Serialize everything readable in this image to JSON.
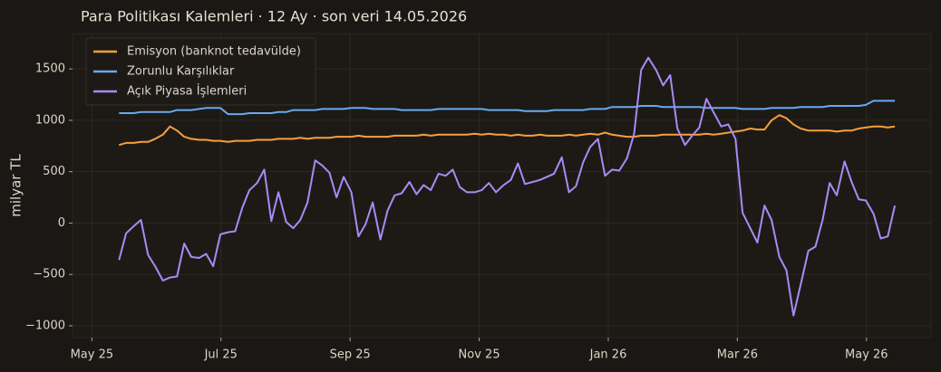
{
  "chart_data": {
    "type": "line",
    "title": "Para Politikası Kalemleri · 12 Ay · son veri 14.05.2026",
    "y_label": "milyar TL",
    "x": [
      0.42,
      0.53,
      0.65,
      0.76,
      0.87,
      0.98,
      1.1,
      1.21,
      1.32,
      1.43,
      1.54,
      1.66,
      1.77,
      1.88,
      1.99,
      2.11,
      2.22,
      2.33,
      2.44,
      2.56,
      2.67,
      2.78,
      2.89,
      3.01,
      3.12,
      3.23,
      3.34,
      3.46,
      3.57,
      3.68,
      3.79,
      3.9,
      4.02,
      4.13,
      4.24,
      4.35,
      4.47,
      4.58,
      4.69,
      4.8,
      4.92,
      5.03,
      5.14,
      5.25,
      5.37,
      5.48,
      5.59,
      5.7,
      5.81,
      5.93,
      6.04,
      6.15,
      6.26,
      6.38,
      6.49,
      6.6,
      6.71,
      6.83,
      6.94,
      7.05,
      7.16,
      7.28,
      7.39,
      7.5,
      7.61,
      7.72,
      7.84,
      7.95,
      8.06,
      8.17,
      8.29,
      8.4,
      8.51,
      8.62,
      8.74,
      8.85,
      8.96,
      9.07,
      9.19,
      9.3,
      9.41,
      9.52,
      9.63,
      9.75,
      9.86,
      9.97,
      10.08,
      10.2,
      10.31,
      10.42,
      10.53,
      10.65,
      10.76,
      10.87,
      10.98,
      11.1,
      11.21,
      11.32,
      11.43,
      11.54,
      11.66,
      11.77,
      11.88,
      11.99,
      12.11,
      12.22,
      12.33,
      12.44
    ],
    "series": [
      {
        "name": "Emisyon (banknot tedavülde)",
        "color": "#f5a03c",
        "values": [
          760,
          780,
          780,
          790,
          790,
          820,
          860,
          940,
          900,
          840,
          820,
          810,
          810,
          800,
          800,
          790,
          800,
          800,
          800,
          810,
          810,
          810,
          820,
          820,
          820,
          830,
          820,
          830,
          830,
          830,
          840,
          840,
          840,
          850,
          840,
          840,
          840,
          840,
          850,
          850,
          850,
          850,
          860,
          850,
          860,
          860,
          860,
          860,
          860,
          870,
          860,
          870,
          860,
          860,
          850,
          860,
          850,
          850,
          860,
          850,
          850,
          850,
          860,
          850,
          860,
          870,
          860,
          880,
          860,
          850,
          840,
          840,
          850,
          850,
          850,
          860,
          860,
          860,
          860,
          860,
          860,
          870,
          860,
          870,
          880,
          890,
          900,
          920,
          910,
          910,
          1000,
          1050,
          1020,
          960,
          920,
          900,
          900,
          900,
          900,
          890,
          900,
          900,
          920,
          930,
          940,
          940,
          930,
          940
        ]
      },
      {
        "name": "Zorunlu Karşılıklar",
        "color": "#66aaf0",
        "values": [
          1070,
          1070,
          1070,
          1080,
          1080,
          1080,
          1080,
          1080,
          1100,
          1100,
          1100,
          1110,
          1120,
          1120,
          1120,
          1060,
          1060,
          1060,
          1070,
          1070,
          1070,
          1070,
          1080,
          1080,
          1100,
          1100,
          1100,
          1100,
          1110,
          1110,
          1110,
          1110,
          1120,
          1120,
          1120,
          1110,
          1110,
          1110,
          1110,
          1100,
          1100,
          1100,
          1100,
          1100,
          1110,
          1110,
          1110,
          1110,
          1110,
          1110,
          1110,
          1100,
          1100,
          1100,
          1100,
          1100,
          1090,
          1090,
          1090,
          1090,
          1100,
          1100,
          1100,
          1100,
          1100,
          1110,
          1110,
          1110,
          1130,
          1130,
          1130,
          1130,
          1140,
          1140,
          1140,
          1130,
          1130,
          1130,
          1130,
          1130,
          1130,
          1120,
          1120,
          1120,
          1120,
          1120,
          1110,
          1110,
          1110,
          1110,
          1120,
          1120,
          1120,
          1120,
          1130,
          1130,
          1130,
          1130,
          1140,
          1140,
          1140,
          1140,
          1140,
          1150,
          1190,
          1190,
          1190,
          1190
        ]
      },
      {
        "name": "Açık Piyasa İşlemleri",
        "color": "#a98bf5",
        "values": [
          -360,
          -100,
          -30,
          30,
          -310,
          -420,
          -560,
          -530,
          -520,
          -200,
          -330,
          -340,
          -300,
          -420,
          -110,
          -90,
          -80,
          150,
          320,
          390,
          520,
          20,
          300,
          10,
          -50,
          30,
          200,
          610,
          560,
          490,
          250,
          450,
          300,
          -130,
          -10,
          200,
          -160,
          120,
          270,
          290,
          400,
          280,
          370,
          320,
          480,
          460,
          520,
          350,
          300,
          300,
          320,
          390,
          300,
          370,
          420,
          580,
          380,
          400,
          420,
          450,
          480,
          640,
          300,
          360,
          590,
          740,
          820,
          460,
          520,
          510,
          630,
          870,
          1490,
          1610,
          1490,
          1340,
          1440,
          920,
          760,
          850,
          930,
          1210,
          1080,
          940,
          960,
          820,
          100,
          -50,
          -190,
          170,
          30,
          -330,
          -460,
          -900,
          -600,
          -270,
          -230,
          30,
          390,
          270,
          600,
          400,
          230,
          220,
          90,
          -150,
          -130,
          170
        ]
      }
    ],
    "xlim": [
      -0.3,
      13.0
    ],
    "xticks": [
      {
        "value": 0,
        "label": "May 25"
      },
      {
        "value": 2,
        "label": "Jul 25"
      },
      {
        "value": 4,
        "label": "Sep 25"
      },
      {
        "value": 6,
        "label": "Nov 25"
      },
      {
        "value": 8,
        "label": "Jan 26"
      },
      {
        "value": 10,
        "label": "Mar 26"
      },
      {
        "value": 12,
        "label": "May 26"
      }
    ],
    "ylim": [
      -1115,
      1845
    ],
    "yticks": [
      {
        "value": -1000,
        "label": "−1000"
      },
      {
        "value": -500,
        "label": "−500"
      },
      0,
      500,
      1000,
      1500
    ],
    "grid": true,
    "legend": "upper left"
  }
}
